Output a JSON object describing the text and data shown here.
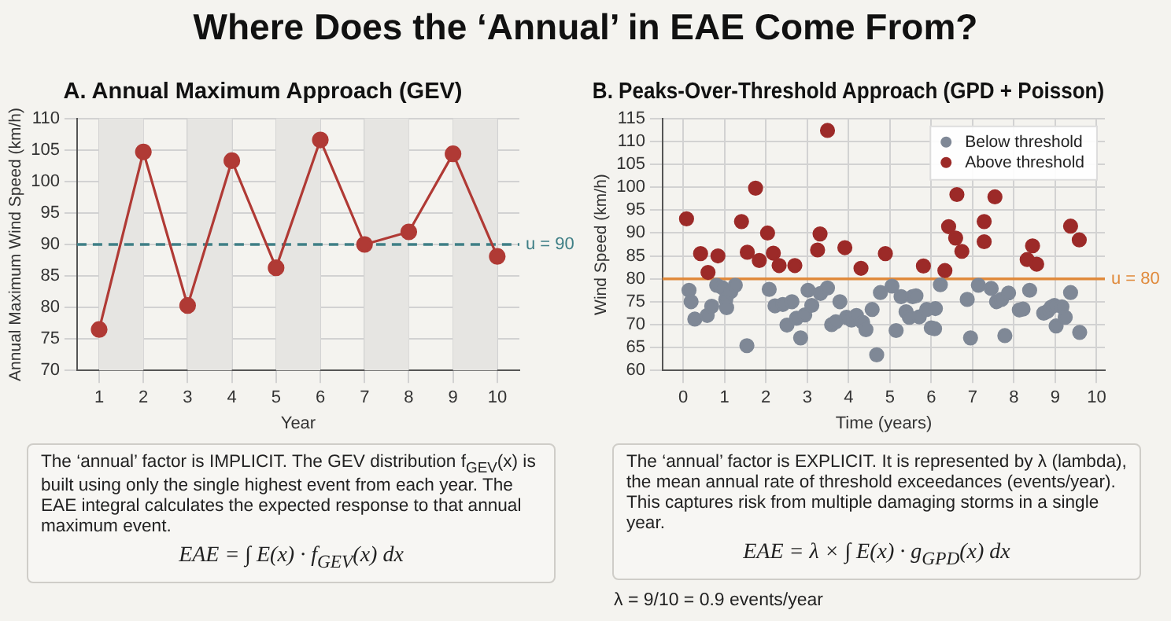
{
  "chart_data": [
    {
      "type": "line",
      "title": "Where Does the ‘Annual’ in EAE Come From?",
      "subtitle": "A. Annual Maximum Approach (GEV)",
      "xlabel": "Year",
      "ylabel": "Annual Maximum Wind Speed (km/h)",
      "x": [
        1,
        2,
        3,
        4,
        5,
        6,
        7,
        8,
        9,
        10
      ],
      "series": [
        {
          "color": "#b03a35",
          "values": [
            76.5,
            104.7,
            80.3,
            103.3,
            86.3,
            106.6,
            90,
            92,
            104.4,
            88.1
          ]
        }
      ],
      "xlim": [
        0.5,
        10.5
      ],
      "xticks": [
        1,
        2,
        3,
        4,
        5,
        6,
        7,
        8,
        9,
        10
      ],
      "ylim": [
        70,
        110
      ],
      "yticks": [
        70,
        75,
        80,
        85,
        90,
        95,
        100,
        105,
        110
      ],
      "grid": true,
      "marker": "circle",
      "legend": false,
      "ref_lines": [
        {
          "axis": "y",
          "value": 90,
          "label": "u = 90",
          "color": "#3f7f86",
          "line_style": "dashed"
        }
      ],
      "bands": [
        {
          "axis": "x",
          "from": 1,
          "to": 2,
          "color": "#e6e5e2"
        },
        {
          "axis": "x",
          "from": 3,
          "to": 4,
          "color": "#e6e5e2"
        },
        {
          "axis": "x",
          "from": 5,
          "to": 6,
          "color": "#e6e5e2"
        },
        {
          "axis": "x",
          "from": 7,
          "to": 8,
          "color": "#e6e5e2"
        },
        {
          "axis": "x",
          "from": 9,
          "to": 10,
          "color": "#e6e5e2"
        }
      ],
      "annotations": [
        "The ‘annual’ factor is IMPLICIT. The GEV distribution f$_{GEV}$(x) is built using only the single highest event from each year. The EAE integral calculates the expected response to that annual maximum event.",
        "EAE = ∫ E(x) · f$_{GEV}$(x) dx"
      ]
    },
    {
      "type": "scatter",
      "title": "B. Peaks-Over-Threshold Approach (GPD + Poisson)",
      "xlabel": "Time (years)",
      "ylabel": "Wind Speed (km/h)",
      "series": [
        {
          "name": "Below threshold",
          "color": "#7f8896",
          "x": [
            0.14,
            0.19,
            0.28,
            0.58,
            0.69,
            0.81,
            0.94,
            1.03,
            1.05,
            1.15,
            1.26,
            1.54,
            2.08,
            2.22,
            2.41,
            2.51,
            2.63,
            2.74,
            2.84,
            2.94,
            3.02,
            3.11,
            3.32,
            3.49,
            3.59,
            3.69,
            3.79,
            3.95,
            4.07,
            4.19,
            4.34,
            4.42,
            4.57,
            4.68,
            4.77,
            5.05,
            5.15,
            5.27,
            5.39,
            5.47,
            5.55,
            5.63,
            5.71,
            5.89,
            6.0,
            6.08,
            6.1,
            6.22,
            6.87,
            6.95,
            7.14,
            7.45,
            7.58,
            7.7,
            7.78,
            7.87,
            8.13,
            8.22,
            8.38,
            8.72,
            8.81,
            8.9,
            8.98,
            9.02,
            9.16,
            9.24,
            9.37,
            9.59
          ],
          "values": [
            77.5,
            75.0,
            71.2,
            72.0,
            74.0,
            78.6,
            78.1,
            75.5,
            73.7,
            77.2,
            78.6,
            65.4,
            77.7,
            74.1,
            74.4,
            69.9,
            75.0,
            71.4,
            67.1,
            72.1,
            77.5,
            74.2,
            76.8,
            78.0,
            70.0,
            70.6,
            75.0,
            71.6,
            71.0,
            72.0,
            70.5,
            68.9,
            73.3,
            63.4,
            77.0,
            78.4,
            68.7,
            76.1,
            72.8,
            71.6,
            76.1,
            76.3,
            71.7,
            73.3,
            69.3,
            69.1,
            73.5,
            78.7,
            75.5,
            67.1,
            78.6,
            77.9,
            75.0,
            75.5,
            67.6,
            76.9,
            73.2,
            73.4,
            77.5,
            72.5,
            72.9,
            73.8,
            74.2,
            69.7,
            73.9,
            71.6,
            77.0,
            68.3
          ]
        },
        {
          "name": "Above threshold",
          "color": "#9c2a28",
          "x": [
            0.08,
            0.42,
            0.6,
            0.84,
            1.41,
            1.55,
            1.75,
            1.84,
            2.04,
            2.18,
            2.32,
            2.7,
            3.25,
            3.31,
            3.49,
            3.91,
            4.3,
            4.89,
            5.81,
            6.33,
            6.42,
            6.59,
            6.62,
            6.74,
            7.28,
            7.28,
            7.54,
            8.32,
            8.45,
            8.55,
            9.37,
            9.58
          ],
          "values": [
            93.1,
            85.5,
            81.4,
            85.0,
            92.5,
            85.8,
            99.8,
            84.0,
            90.0,
            85.6,
            82.9,
            82.9,
            86.3,
            89.8,
            112.4,
            86.8,
            82.3,
            85.5,
            82.8,
            81.8,
            91.4,
            88.9,
            98.4,
            86.0,
            92.5,
            88.1,
            97.9,
            84.2,
            87.2,
            83.2,
            91.5,
            88.5
          ]
        }
      ],
      "xlim": [
        -0.5,
        10.2
      ],
      "xticks": [
        0,
        1,
        2,
        3,
        4,
        5,
        6,
        7,
        8,
        9,
        10
      ],
      "ylim": [
        60,
        115
      ],
      "yticks": [
        60,
        65,
        70,
        75,
        80,
        85,
        90,
        95,
        100,
        105,
        110,
        115
      ],
      "grid": true,
      "marker": "circle",
      "legend": "top right",
      "ref_lines": [
        {
          "axis": "y",
          "value": 80,
          "label": "u = 80",
          "color": "#e08a3c",
          "line_style": "solid"
        }
      ],
      "annotations": [
        "The ‘annual’ factor is EXPLICIT. It is represented by λ (lambda), the mean annual rate of threshold exceedances (events/year). This captures risk from multiple damaging storms in a single year.",
        "EAE = λ × ∫ E(x) · g$_{GPD}$(x) dx",
        "λ = 9/10 = 0.9 events/year"
      ]
    }
  ]
}
